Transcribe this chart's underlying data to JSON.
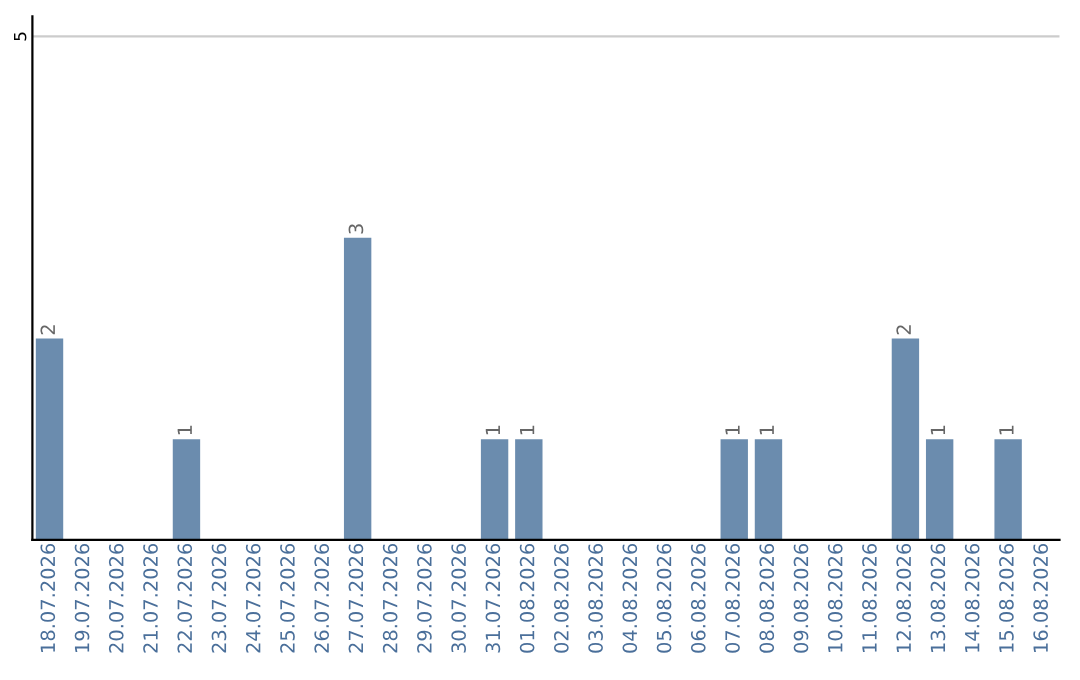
{
  "chart_data": {
    "type": "bar",
    "categories": [
      "18.07.2026",
      "19.07.2026",
      "20.07.2026",
      "21.07.2026",
      "22.07.2026",
      "23.07.2026",
      "24.07.2026",
      "25.07.2026",
      "26.07.2026",
      "27.07.2026",
      "28.07.2026",
      "29.07.2026",
      "30.07.2026",
      "31.07.2026",
      "01.08.2026",
      "02.08.2026",
      "03.08.2026",
      "04.08.2026",
      "05.08.2026",
      "06.08.2026",
      "07.08.2026",
      "08.08.2026",
      "09.08.2026",
      "10.08.2026",
      "11.08.2026",
      "12.08.2026",
      "13.08.2026",
      "14.08.2026",
      "15.08.2026",
      "16.08.2026"
    ],
    "values": [
      2,
      0,
      0,
      0,
      1,
      0,
      0,
      0,
      0,
      3,
      0,
      0,
      0,
      1,
      1,
      0,
      0,
      0,
      0,
      0,
      1,
      1,
      0,
      0,
      0,
      2,
      1,
      0,
      1,
      0
    ],
    "value_labels": [
      "2",
      null,
      null,
      null,
      "1",
      null,
      null,
      null,
      null,
      "3",
      null,
      null,
      null,
      "1",
      "1",
      null,
      null,
      null,
      null,
      null,
      "1",
      "1",
      null,
      null,
      null,
      "2",
      "1",
      null,
      "1",
      null
    ],
    "color": "#6b8cae",
    "ylim": [
      0,
      5.2
    ],
    "yticks": [
      5
    ],
    "grid": "y"
  }
}
